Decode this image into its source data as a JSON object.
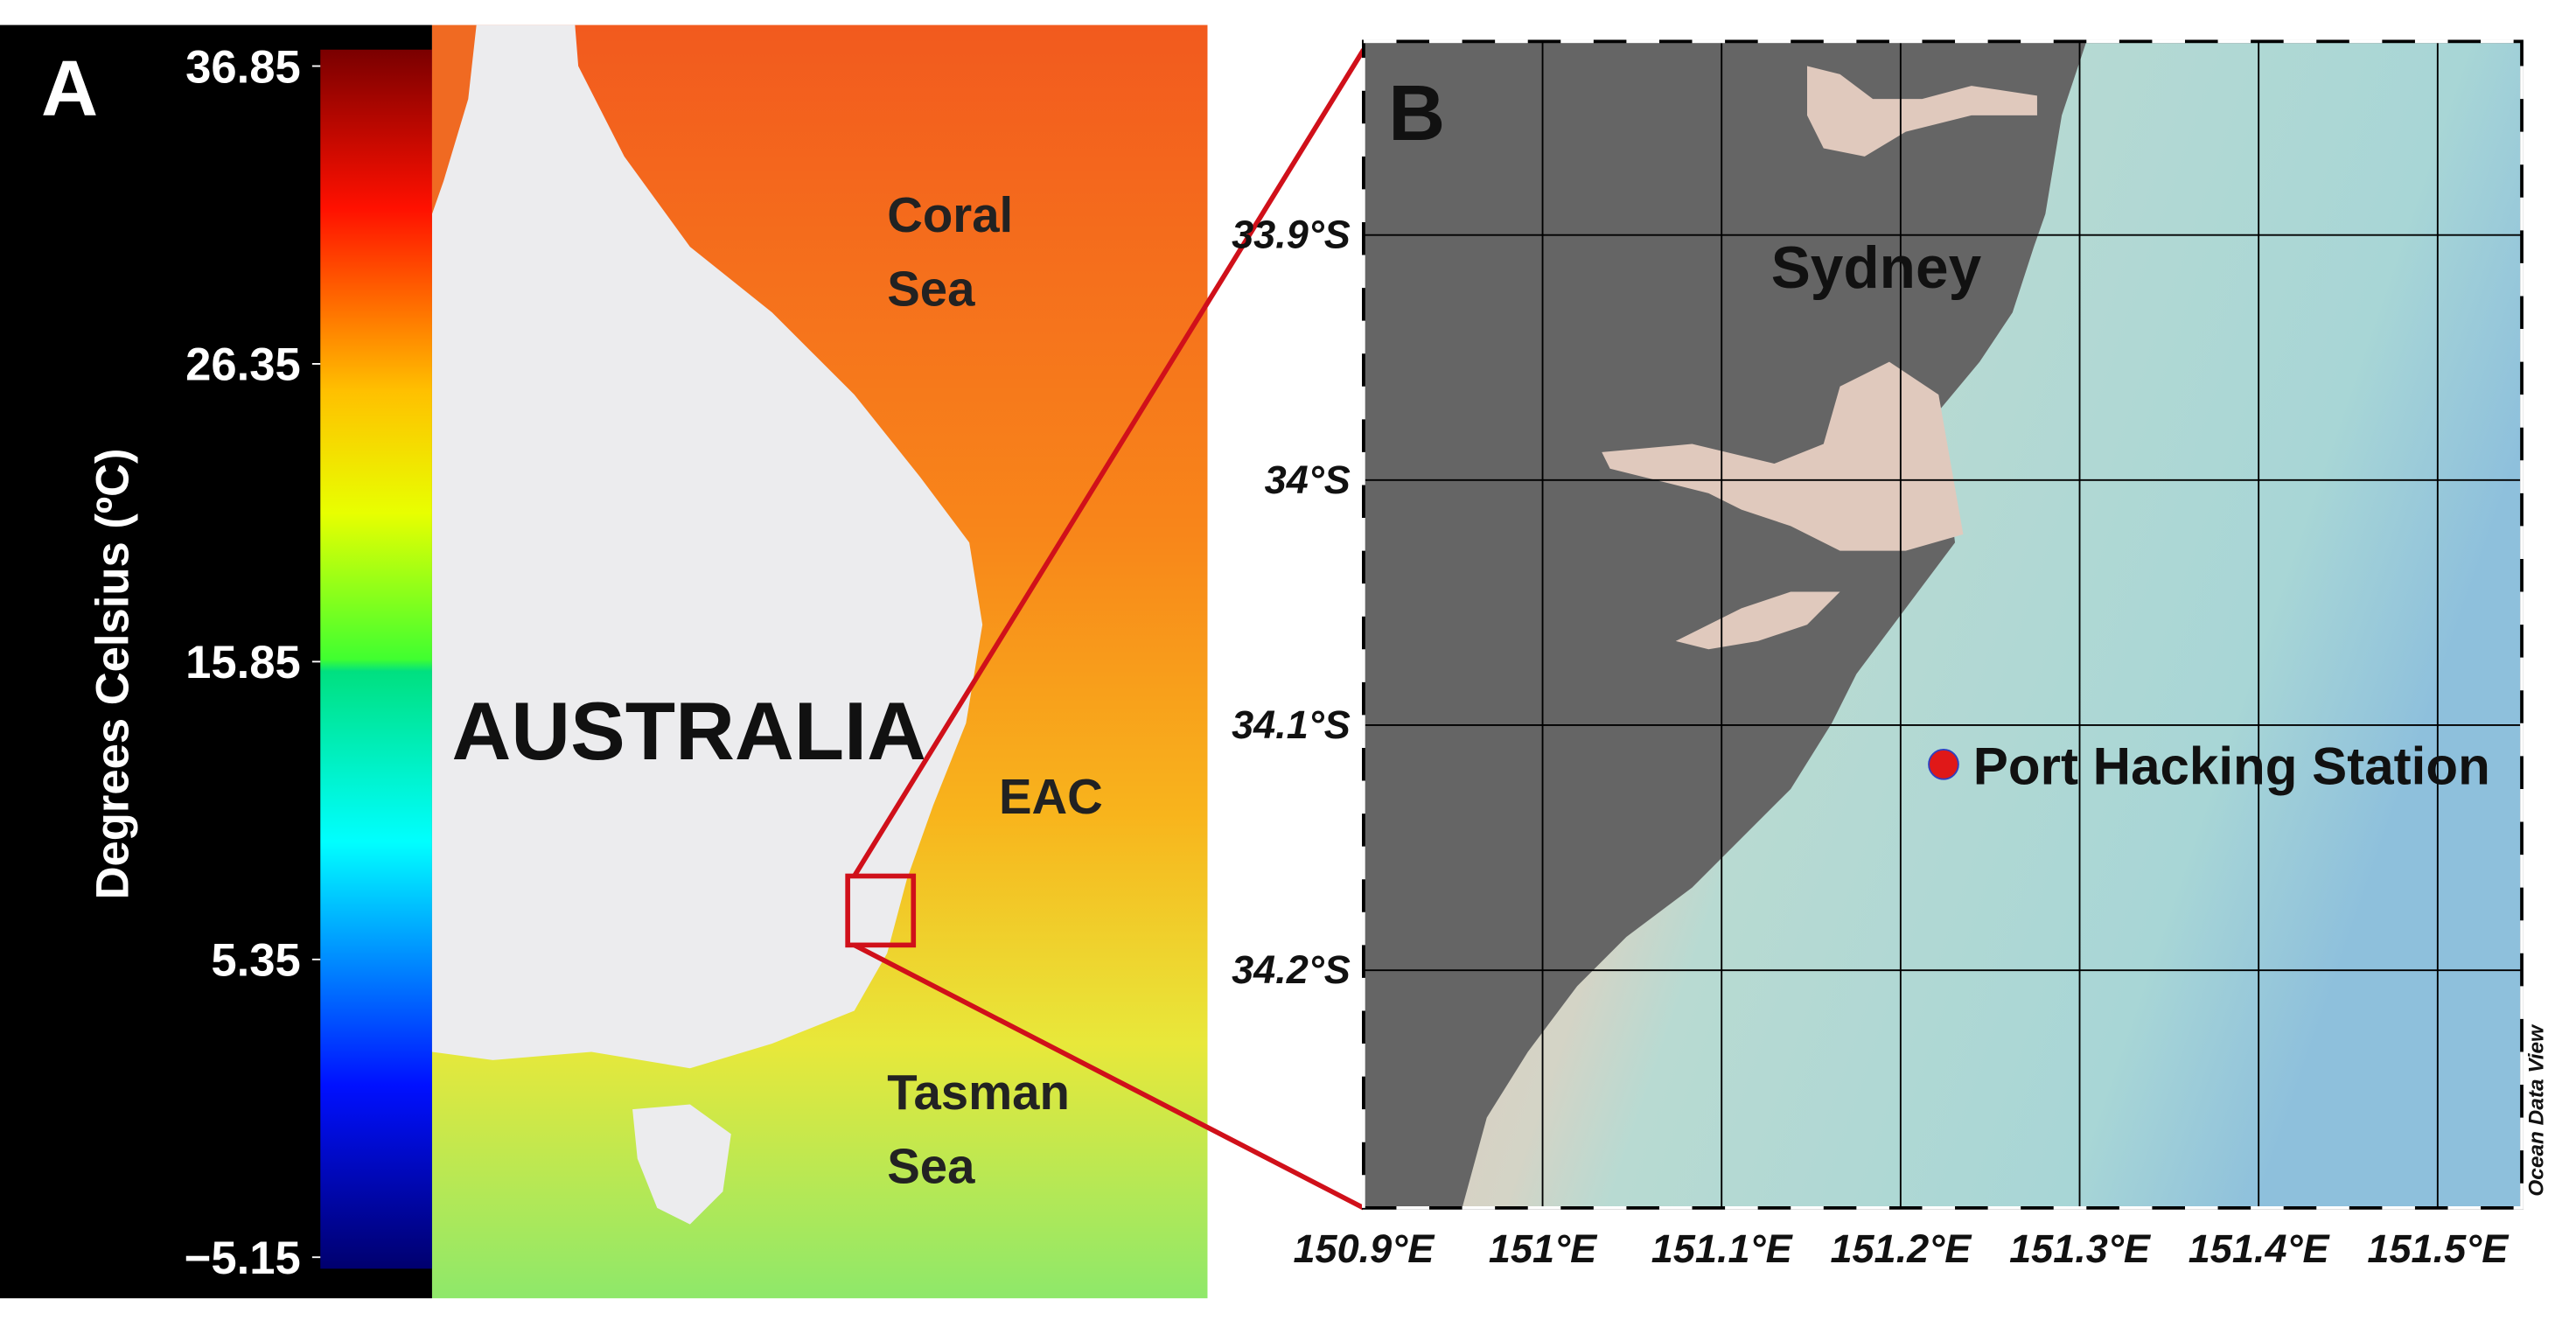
{
  "panel_a": {
    "label": "A",
    "colorbar": {
      "title": "Degrees Celsius (ºC)",
      "lim": [
        -5.15,
        36.85
      ],
      "ticks": [
        36.85,
        26.35,
        15.85,
        5.35,
        {
          "value": -5.15,
          "label": "−5.15"
        }
      ]
    },
    "coral_sea": [
      "Coral",
      "Sea"
    ],
    "australia": "AUSTRALIA",
    "eac": "EAC",
    "tasman_sea": [
      "Tasman",
      "Sea"
    ]
  },
  "panel_b": {
    "label": "B",
    "city": "Sydney",
    "credit": "Ocean Data View",
    "xlim": [
      150.9,
      151.547
    ],
    "ylim": [
      -34.297,
      -33.821
    ],
    "xticks": [
      {
        "value": 150.9,
        "label": "150.9°E"
      },
      {
        "value": 151.0,
        "label": "151°E"
      },
      {
        "value": 151.1,
        "label": "151.1°E"
      },
      {
        "value": 151.2,
        "label": "151.2°E"
      },
      {
        "value": 151.3,
        "label": "151.3°E"
      },
      {
        "value": 151.4,
        "label": "151.4°E"
      },
      {
        "value": 151.5,
        "label": "151.5°E"
      }
    ],
    "yticks": [
      {
        "value": -33.9,
        "label": "33.9°S"
      },
      {
        "value": -34.0,
        "label": "34°S"
      },
      {
        "value": -34.1,
        "label": "34.1°S"
      },
      {
        "value": -34.2,
        "label": "34.2°S"
      }
    ],
    "station": {
      "name": "Port Hacking Station",
      "lon": 151.224,
      "lat": -34.116
    }
  }
}
